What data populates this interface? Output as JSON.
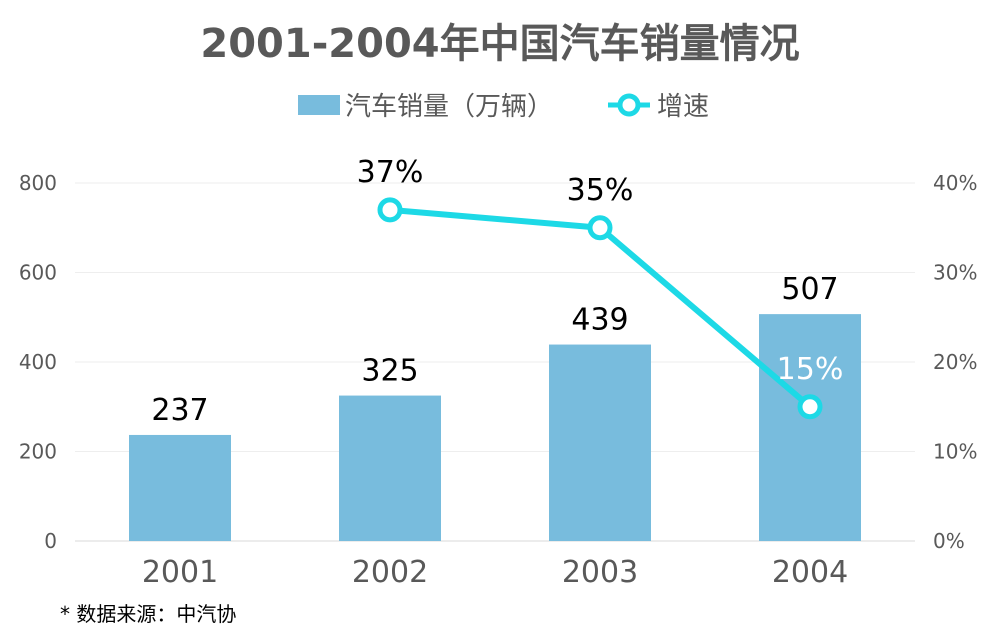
{
  "chart_data": {
    "type": "bar",
    "title": "2001-2004年中国汽车销量情况",
    "categories": [
      "2001",
      "2002",
      "2003",
      "2004"
    ],
    "series": [
      {
        "name": "汽车销量（万辆）",
        "type": "bar",
        "axis": "left",
        "values": [
          237,
          325,
          439,
          507
        ],
        "labels": [
          "237",
          "325",
          "439",
          "507"
        ],
        "color": "#78BCDD"
      },
      {
        "name": "增速",
        "type": "line",
        "axis": "right",
        "values": [
          null,
          37,
          35,
          15
        ],
        "labels": [
          "",
          "37%",
          "35%",
          "15%"
        ],
        "color": "#1DD9E6"
      }
    ],
    "y_left": {
      "min": 0,
      "max": 800,
      "ticks": [
        "0",
        "200",
        "400",
        "600",
        "800"
      ]
    },
    "y_right": {
      "min": 0,
      "max": 40,
      "ticks": [
        "0%",
        "10%",
        "20%",
        "30%",
        "40%"
      ]
    },
    "grid": true,
    "legend_position": "top-center",
    "source_note": "* 数据来源：中汽协"
  }
}
